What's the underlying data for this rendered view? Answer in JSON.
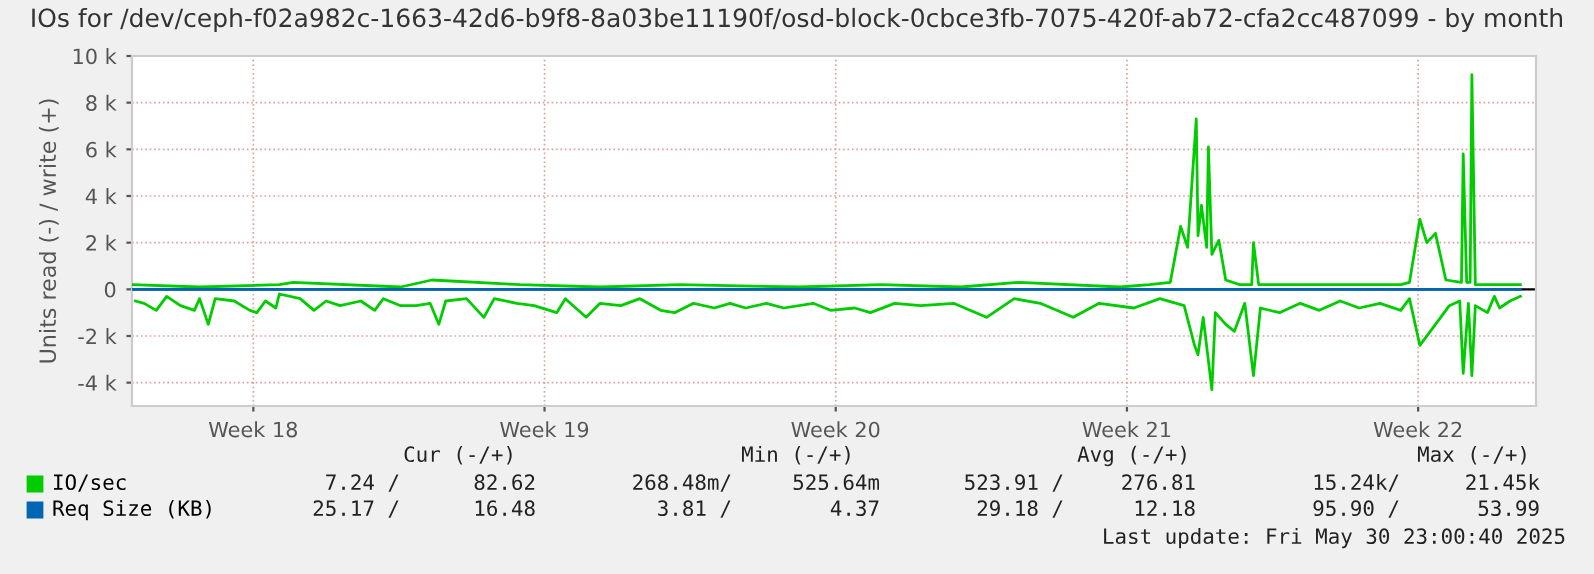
{
  "chart_data": {
    "type": "line",
    "title": "IOs for /dev/ceph-f02a982c-1663-42d6-b9f8-8a03be11190f/osd-block-0cbce3fb-7075-420f-ab72-cfa2cc487099 - by month",
    "ylabel": "Units read (-) / write (+)",
    "xlim": [
      "2025-04-28T12:00",
      "2025-06-01T06:00"
    ],
    "xticks": [
      {
        "value": "2025-05-01T10:00",
        "label": "Week 18"
      },
      {
        "value": "2025-05-08T10:00",
        "label": "Week 19"
      },
      {
        "value": "2025-05-15T10:00",
        "label": "Week 20"
      },
      {
        "value": "2025-05-22T10:00",
        "label": "Week 21"
      },
      {
        "value": "2025-05-29T10:00",
        "label": "Week 22"
      }
    ],
    "ylim": [
      -5000,
      10000
    ],
    "yticks": [
      {
        "value": -4000,
        "label": "-4 k"
      },
      {
        "value": -2000,
        "label": "-2 k"
      },
      0,
      {
        "value": 2000,
        "label": "2 k"
      },
      {
        "value": 4000,
        "label": "4 k"
      },
      {
        "value": 6000,
        "label": "6 k"
      },
      {
        "value": 8000,
        "label": "8 k"
      },
      {
        "value": 10000,
        "label": "10 k"
      }
    ],
    "grid": true,
    "legend": "bottom",
    "marker": "none",
    "line_style": "solid",
    "series": [
      {
        "name": "IO/sec",
        "color": "#00cc00",
        "x": [
          "2025-04-28T14:00",
          "2025-04-28T19:00",
          "2025-04-29T02:00",
          "2025-04-29T08:00",
          "2025-04-29T16:00",
          "2025-04-30T00:00",
          "2025-04-30T03:00",
          "2025-04-30T08:00",
          "2025-04-30T12:00",
          "2025-04-30T23:00",
          "2025-05-01T08:00",
          "2025-05-01T12:00",
          "2025-05-01T17:00",
          "2025-05-01T23:00",
          "2025-05-02T01:00",
          "2025-05-02T13:00",
          "2025-05-02T21:00",
          "2025-05-03T04:00",
          "2025-05-03T12:00",
          "2025-05-04T00:00",
          "2025-05-04T08:00",
          "2025-05-04T13:00",
          "2025-05-04T23:00",
          "2025-05-05T08:00",
          "2025-05-05T16:00",
          "2025-05-05T21:00",
          "2025-05-06T01:00",
          "2025-05-06T13:00",
          "2025-05-06T23:00",
          "2025-05-07T05:00",
          "2025-05-07T18:00",
          "2025-05-08T04:00",
          "2025-05-08T17:00",
          "2025-05-08T22:00",
          "2025-05-09T10:00",
          "2025-05-09T18:00",
          "2025-05-10T06:00",
          "2025-05-10T17:00",
          "2025-05-11T05:00",
          "2025-05-11T13:00",
          "2025-05-12T00:00",
          "2025-05-12T12:00",
          "2025-05-12T21:00",
          "2025-05-13T06:00",
          "2025-05-13T18:00",
          "2025-05-14T04:00",
          "2025-05-14T21:00",
          "2025-05-15T07:00",
          "2025-05-15T21:00",
          "2025-05-16T06:00",
          "2025-05-16T20:00",
          "2025-05-17T11:00",
          "2025-05-18T06:00",
          "2025-05-19T01:00",
          "2025-05-19T17:00",
          "2025-05-20T08:00",
          "2025-05-21T03:00",
          "2025-05-21T18:00",
          "2025-05-22T14:00",
          "2025-05-23T05:00",
          "2025-05-23T19:00",
          "2025-05-24T01:00",
          "2025-05-24T03:00",
          "2025-05-24T06:00",
          "2025-05-24T11:00",
          "2025-05-24T13:00",
          "2025-05-24T19:00",
          "2025-05-25T00:00",
          "2025-05-25T06:00",
          "2025-05-25T11:00",
          "2025-05-25T15:00",
          "2025-05-26T02:00",
          "2025-05-26T14:00",
          "2025-05-27T01:00",
          "2025-05-27T13:00",
          "2025-05-28T00:00",
          "2025-05-28T12:00",
          "2025-05-29T00:00",
          "2025-05-29T05:00",
          "2025-05-29T11:00",
          "2025-05-29T17:00",
          "2025-05-29T23:00",
          "2025-05-30T04:00",
          "2025-05-30T10:00",
          "2025-05-30T12:00",
          "2025-05-30T15:00",
          "2025-05-30T17:00",
          "2025-05-30T19:00",
          "2025-05-31T02:00",
          "2025-05-31T06:00",
          "2025-05-31T09:00",
          "2025-05-31T15:00",
          "2025-05-31T21:00"
        ],
        "values": [
          -500,
          -600,
          -900,
          -300,
          -700,
          -900,
          -400,
          -1500,
          -400,
          -500,
          -900,
          -1000,
          -500,
          -800,
          -200,
          -400,
          -900,
          -500,
          -700,
          -500,
          -900,
          -400,
          -700,
          -700,
          -600,
          -1500,
          -500,
          -400,
          -1200,
          -400,
          -600,
          -700,
          -1000,
          -400,
          -1200,
          -600,
          -700,
          -400,
          -900,
          -1000,
          -600,
          -800,
          -600,
          -800,
          -600,
          -800,
          -600,
          -900,
          -800,
          -1000,
          -600,
          -700,
          -600,
          -1200,
          -400,
          -600,
          -1200,
          -600,
          -800,
          -400,
          -700,
          -2400,
          -2800,
          -1200,
          -4300,
          -1000,
          -1500,
          -1800,
          -600,
          -3700,
          -800,
          -1000,
          -600,
          -900,
          -500,
          -800,
          -600,
          -900,
          -400,
          -2400,
          -1800,
          -1200,
          -700,
          -500,
          -3600,
          -600,
          -3700,
          -700,
          -1000,
          -300,
          -800,
          -500,
          -300
        ]
      },
      {
        "color": "#00cc00",
        "x": [
          "2025-04-28T12:00",
          "2025-04-30T03:00",
          "2025-05-02T01:00",
          "2025-05-02T09:00",
          "2025-05-04T23:00",
          "2025-05-05T17:00",
          "2025-05-07T20:00",
          "2025-05-09T18:00",
          "2025-05-11T16:00",
          "2025-05-14T13:00",
          "2025-05-16T12:00",
          "2025-05-18T10:00",
          "2025-05-19T20:00",
          "2025-05-22T06:00",
          "2025-05-22T23:00",
          "2025-05-23T11:00",
          "2025-05-23T17:00",
          "2025-05-23T21:00",
          "2025-05-24T02:00",
          "2025-05-24T03:00",
          "2025-05-24T05:00",
          "2025-05-24T08:00",
          "2025-05-24T09:00",
          "2025-05-24T11:00",
          "2025-05-24T15:00",
          "2025-05-24T19:00",
          "2025-05-25T03:00",
          "2025-05-25T10:00",
          "2025-05-25T11:00",
          "2025-05-25T14:00",
          "2025-05-27T01:00",
          "2025-05-29T00:00",
          "2025-05-29T05:00",
          "2025-05-29T11:00",
          "2025-05-29T15:00",
          "2025-05-29T20:00",
          "2025-05-30T02:00",
          "2025-05-30T11:00",
          "2025-05-30T12:00",
          "2025-05-30T14:00",
          "2025-05-30T16:00",
          "2025-05-30T17:00",
          "2025-05-30T19:00",
          "2025-05-31T09:00",
          "2025-05-31T21:00"
        ],
        "values": [
          200,
          100,
          200,
          300,
          100,
          400,
          200,
          100,
          200,
          100,
          200,
          100,
          300,
          100,
          200,
          300,
          2700,
          1800,
          7300,
          2300,
          3600,
          1800,
          6100,
          1500,
          2100,
          400,
          200,
          200,
          2000,
          200,
          200,
          200,
          300,
          3000,
          2000,
          2400,
          400,
          300,
          5800,
          300,
          300,
          9200,
          200,
          200,
          200
        ]
      },
      {
        "name": "Req Size (KB)",
        "color": "#0066b3",
        "x": [
          "2025-04-28T12:00",
          "2025-05-31T21:00"
        ],
        "values": [
          0,
          0
        ]
      }
    ],
    "annotations": [
      "Cur (-/+)",
      "Min (-/+)",
      "Avg (-/+)",
      "Max (-/+)",
      "7.24 /",
      "82.62",
      "268.48m/",
      "525.64m",
      "523.91 /",
      "276.81",
      "15.24k/",
      "21.45k",
      "25.17 /",
      "16.48",
      "3.81 /",
      "4.37",
      "29.18 /",
      "12.18",
      "95.90 /",
      "53.99",
      "Last update: Fri May 30 23:00:40 2025"
    ]
  }
}
